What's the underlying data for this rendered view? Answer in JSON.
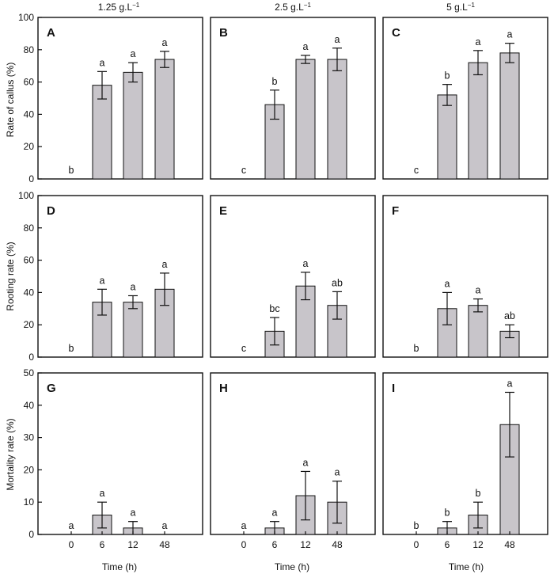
{
  "figure": {
    "column_titles": [
      {
        "base": "1.25 g.L",
        "sup": "−1"
      },
      {
        "base": "2.5 g.L",
        "sup": "−1"
      },
      {
        "base": "5 g.L",
        "sup": "−1"
      }
    ],
    "row_ylabels": [
      "Rate of callus (%)",
      "Rooting rate (%)",
      "Mortality rate (%)"
    ],
    "xlabel": "Time (h)",
    "bar_color": "#c8c5ca",
    "axis_color": "#111111"
  },
  "chart_data": [
    {
      "type": "bar",
      "panel": "A",
      "row": 0,
      "col": 0,
      "categories": [
        "0",
        "6",
        "12",
        "48"
      ],
      "values": [
        0,
        58,
        66,
        74
      ],
      "errors": [
        0,
        8.5,
        6,
        5
      ],
      "letters": [
        "b",
        "a",
        "a",
        "a"
      ],
      "ylim": [
        0,
        100
      ],
      "yticks": [
        0,
        20,
        40,
        60,
        80,
        100
      ],
      "show_xticklabels": false
    },
    {
      "type": "bar",
      "panel": "B",
      "row": 0,
      "col": 1,
      "categories": [
        "0",
        "6",
        "12",
        "48"
      ],
      "values": [
        0,
        46,
        74,
        74
      ],
      "errors": [
        0,
        9,
        2.5,
        7
      ],
      "letters": [
        "c",
        "b",
        "a",
        "a"
      ],
      "ylim": [
        0,
        100
      ],
      "yticks": [],
      "show_xticklabels": false
    },
    {
      "type": "bar",
      "panel": "C",
      "row": 0,
      "col": 2,
      "categories": [
        "0",
        "6",
        "12",
        "48"
      ],
      "values": [
        0,
        52,
        72,
        78
      ],
      "errors": [
        0,
        6.5,
        7.5,
        6
      ],
      "letters": [
        "c",
        "b",
        "a",
        "a"
      ],
      "ylim": [
        0,
        100
      ],
      "yticks": [],
      "show_xticklabels": false
    },
    {
      "type": "bar",
      "panel": "D",
      "row": 1,
      "col": 0,
      "categories": [
        "0",
        "6",
        "12",
        "48"
      ],
      "values": [
        0,
        34,
        34,
        42
      ],
      "errors": [
        0,
        8,
        4,
        10
      ],
      "letters": [
        "b",
        "a",
        "a",
        "a"
      ],
      "ylim": [
        0,
        100
      ],
      "yticks": [
        0,
        20,
        40,
        60,
        80,
        100
      ],
      "show_xticklabels": false
    },
    {
      "type": "bar",
      "panel": "E",
      "row": 1,
      "col": 1,
      "categories": [
        "0",
        "6",
        "12",
        "48"
      ],
      "values": [
        0,
        16,
        44,
        32
      ],
      "errors": [
        0,
        8.5,
        8.5,
        8.5
      ],
      "letters": [
        "c",
        "bc",
        "a",
        "ab"
      ],
      "ylim": [
        0,
        100
      ],
      "yticks": [],
      "show_xticklabels": false
    },
    {
      "type": "bar",
      "panel": "F",
      "row": 1,
      "col": 2,
      "categories": [
        "0",
        "6",
        "12",
        "48"
      ],
      "values": [
        0,
        30,
        32,
        16
      ],
      "errors": [
        0,
        10,
        4,
        4
      ],
      "letters": [
        "b",
        "a",
        "a",
        "ab"
      ],
      "ylim": [
        0,
        100
      ],
      "yticks": [],
      "show_xticklabels": false
    },
    {
      "type": "bar",
      "panel": "G",
      "row": 2,
      "col": 0,
      "categories": [
        "0",
        "6",
        "12",
        "48"
      ],
      "values": [
        0,
        6,
        2,
        0
      ],
      "errors": [
        0,
        4,
        2,
        0
      ],
      "letters": [
        "a",
        "a",
        "a",
        "a"
      ],
      "ylim": [
        0,
        50
      ],
      "yticks": [
        0,
        10,
        20,
        30,
        40,
        50
      ],
      "show_xticklabels": true
    },
    {
      "type": "bar",
      "panel": "H",
      "row": 2,
      "col": 1,
      "categories": [
        "0",
        "6",
        "12",
        "48"
      ],
      "values": [
        0,
        2,
        12,
        10
      ],
      "errors": [
        0,
        2,
        7.5,
        6.5
      ],
      "letters": [
        "a",
        "a",
        "a",
        "a"
      ],
      "ylim": [
        0,
        50
      ],
      "yticks": [],
      "show_xticklabels": true
    },
    {
      "type": "bar",
      "panel": "I",
      "row": 2,
      "col": 2,
      "categories": [
        "0",
        "6",
        "12",
        "48"
      ],
      "values": [
        0,
        2,
        6,
        34
      ],
      "errors": [
        0,
        2,
        4,
        10
      ],
      "letters": [
        "b",
        "b",
        "b",
        "a"
      ],
      "ylim": [
        0,
        50
      ],
      "yticks": [],
      "show_xticklabels": true
    }
  ]
}
